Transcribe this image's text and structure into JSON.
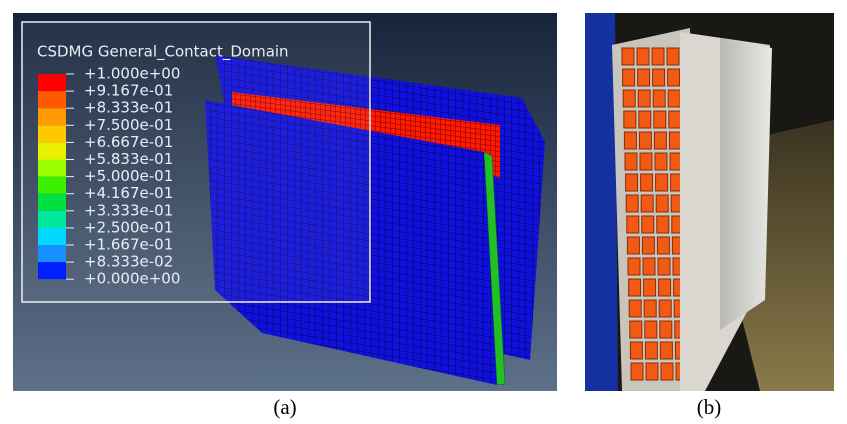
{
  "panel_a": {
    "legend": {
      "title": "CSDMG General_Contact_Domain",
      "labels": [
        "+1.000e+00",
        "+9.167e-01",
        "+8.333e-01",
        "+7.500e-01",
        "+6.667e-01",
        "+5.833e-01",
        "+5.000e-01",
        "+4.167e-01",
        "+3.333e-01",
        "+2.500e-01",
        "+1.667e-01",
        "+8.333e-02",
        "+0.000e+00"
      ]
    },
    "caption": "(a)"
  },
  "panel_b": {
    "caption": "(b)"
  }
}
